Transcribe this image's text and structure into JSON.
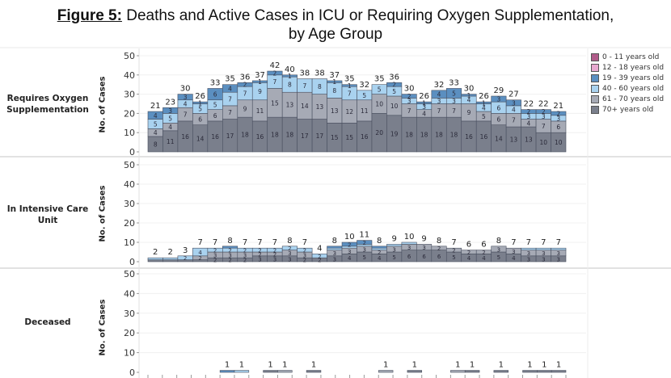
{
  "title": {
    "figure_label": "Figure 5:",
    "text_line1": " Deaths and Active Cases in ICU or Requiring Oxygen Supplementation,",
    "text_line2": "by Age Group"
  },
  "legend": [
    {
      "name": "0 - 11 years old",
      "color": "#b05c8a"
    },
    {
      "name": "12 - 18 years old",
      "color": "#e7a9d0"
    },
    {
      "name": "19 - 39 years old",
      "color": "#5b8fc0"
    },
    {
      "name": "40 - 60 years old",
      "color": "#a9d2ef"
    },
    {
      "name": "61 - 70 years old",
      "color": "#a6aab5"
    },
    {
      "name": "70+ years old",
      "color": "#7a7f8c"
    }
  ],
  "chart_data": [
    {
      "type": "bar",
      "stacked": true,
      "title": "Requires Oxygen Supplementation",
      "ylabel": "No. of Cases",
      "ylim": [
        0,
        50
      ],
      "yticks": [
        0,
        10,
        20,
        30,
        40,
        50
      ],
      "totals": [
        21,
        23,
        30,
        26,
        33,
        35,
        36,
        37,
        42,
        40,
        38,
        38,
        37,
        35,
        32,
        35,
        36,
        30,
        26,
        32,
        33,
        30,
        26,
        29,
        27,
        22,
        22,
        21
      ],
      "series": [
        {
          "name": "70+ years old",
          "values": [
            8,
            11,
            16,
            14,
            16,
            17,
            18,
            16,
            18,
            18,
            17,
            17,
            15,
            15,
            16,
            20,
            19,
            18,
            18,
            18,
            18,
            16,
            16,
            14,
            13,
            13,
            10,
            10
          ]
        },
        {
          "name": "61 - 70 years old",
          "values": [
            4,
            4,
            7,
            6,
            6,
            7,
            9,
            11,
            15,
            13,
            14,
            13,
            13,
            12,
            11,
            10,
            10,
            7,
            4,
            7,
            7,
            9,
            5,
            6,
            7,
            4,
            7,
            6
          ]
        },
        {
          "name": "40 - 60 years old",
          "values": [
            5,
            5,
            4,
            5,
            5,
            7,
            7,
            9,
            7,
            8,
            7,
            8,
            8,
            7,
            5,
            5,
            5,
            3,
            3,
            3,
            3,
            4,
            4,
            6,
            4,
            3,
            3,
            3
          ]
        },
        {
          "name": "19 - 39 years old",
          "values": [
            4,
            3,
            3,
            1,
            6,
            4,
            2,
            1,
            2,
            1,
            0,
            0,
            1,
            1,
            0,
            0,
            2,
            2,
            1,
            4,
            5,
            1,
            1,
            3,
            3,
            2,
            2,
            2
          ]
        }
      ]
    },
    {
      "type": "bar",
      "stacked": true,
      "title": "In Intensive Care Unit",
      "ylabel": "No. of Cases",
      "ylim": [
        0,
        50
      ],
      "yticks": [
        0,
        10,
        20,
        30,
        40,
        50
      ],
      "totals": [
        2,
        2,
        3,
        7,
        7,
        8,
        7,
        7,
        7,
        8,
        7,
        4,
        8,
        10,
        11,
        8,
        9,
        10,
        9,
        8,
        7,
        6,
        6,
        8,
        7,
        7,
        7,
        7
      ],
      "series": [
        {
          "name": "70+ years old",
          "values": [
            1,
            1,
            1,
            1,
            2,
            2,
            2,
            3,
            3,
            3,
            2,
            2,
            3,
            4,
            5,
            4,
            5,
            6,
            6,
            6,
            5,
            4,
            4,
            5,
            4,
            3,
            3,
            3
          ]
        },
        {
          "name": "61 - 70 years old",
          "values": [
            0,
            0,
            0,
            2,
            3,
            3,
            3,
            2,
            2,
            3,
            3,
            0,
            3,
            3,
            3,
            2,
            3,
            3,
            3,
            2,
            2,
            2,
            2,
            3,
            3,
            3,
            3,
            3
          ]
        },
        {
          "name": "40 - 60 years old",
          "values": [
            1,
            1,
            2,
            4,
            2,
            2,
            2,
            2,
            2,
            2,
            2,
            2,
            1,
            1,
            1,
            1,
            1,
            1,
            0,
            0,
            0,
            0,
            0,
            0,
            0,
            1,
            1,
            1
          ]
        },
        {
          "name": "19 - 39 years old",
          "values": [
            0,
            0,
            0,
            0,
            0,
            1,
            0,
            0,
            0,
            0,
            0,
            0,
            1,
            2,
            2,
            1,
            0,
            0,
            0,
            0,
            0,
            0,
            0,
            0,
            0,
            0,
            0,
            0
          ]
        }
      ]
    },
    {
      "type": "bar",
      "stacked": true,
      "title": "Deceased",
      "ylabel": "No. of Cases",
      "ylim": [
        0,
        50
      ],
      "yticks": [
        0,
        10,
        20,
        30,
        40,
        50
      ],
      "totals": [
        0,
        0,
        0,
        0,
        0,
        1,
        1,
        0,
        1,
        1,
        0,
        1,
        0,
        0,
        0,
        0,
        1,
        0,
        1,
        0,
        0,
        1,
        1,
        0,
        1,
        0,
        1,
        1,
        1
      ],
      "series": [
        {
          "name": "70+ years old",
          "values": [
            0,
            0,
            0,
            0,
            0,
            0,
            0,
            0,
            1,
            0,
            0,
            1,
            0,
            0,
            0,
            0,
            0,
            0,
            1,
            0,
            0,
            0,
            1,
            0,
            1,
            0,
            1,
            1,
            1
          ]
        },
        {
          "name": "61 - 70 years old",
          "values": [
            0,
            0,
            0,
            0,
            0,
            0,
            0,
            0,
            0,
            1,
            0,
            0,
            0,
            0,
            0,
            0,
            1,
            0,
            0,
            0,
            0,
            1,
            0,
            0,
            0,
            0,
            0,
            0,
            0
          ]
        },
        {
          "name": "40 - 60 years old",
          "values": [
            0,
            0,
            0,
            0,
            0,
            0,
            1,
            0,
            0,
            0,
            0,
            0,
            0,
            0,
            0,
            0,
            0,
            0,
            0,
            0,
            0,
            0,
            0,
            0,
            0,
            0,
            0,
            0,
            0
          ]
        },
        {
          "name": "19 - 39 years old",
          "values": [
            0,
            0,
            0,
            0,
            0,
            1,
            0,
            0,
            0,
            0,
            0,
            0,
            0,
            0,
            0,
            0,
            0,
            0,
            0,
            0,
            0,
            0,
            0,
            0,
            0,
            0,
            0,
            0,
            0
          ]
        }
      ]
    }
  ]
}
